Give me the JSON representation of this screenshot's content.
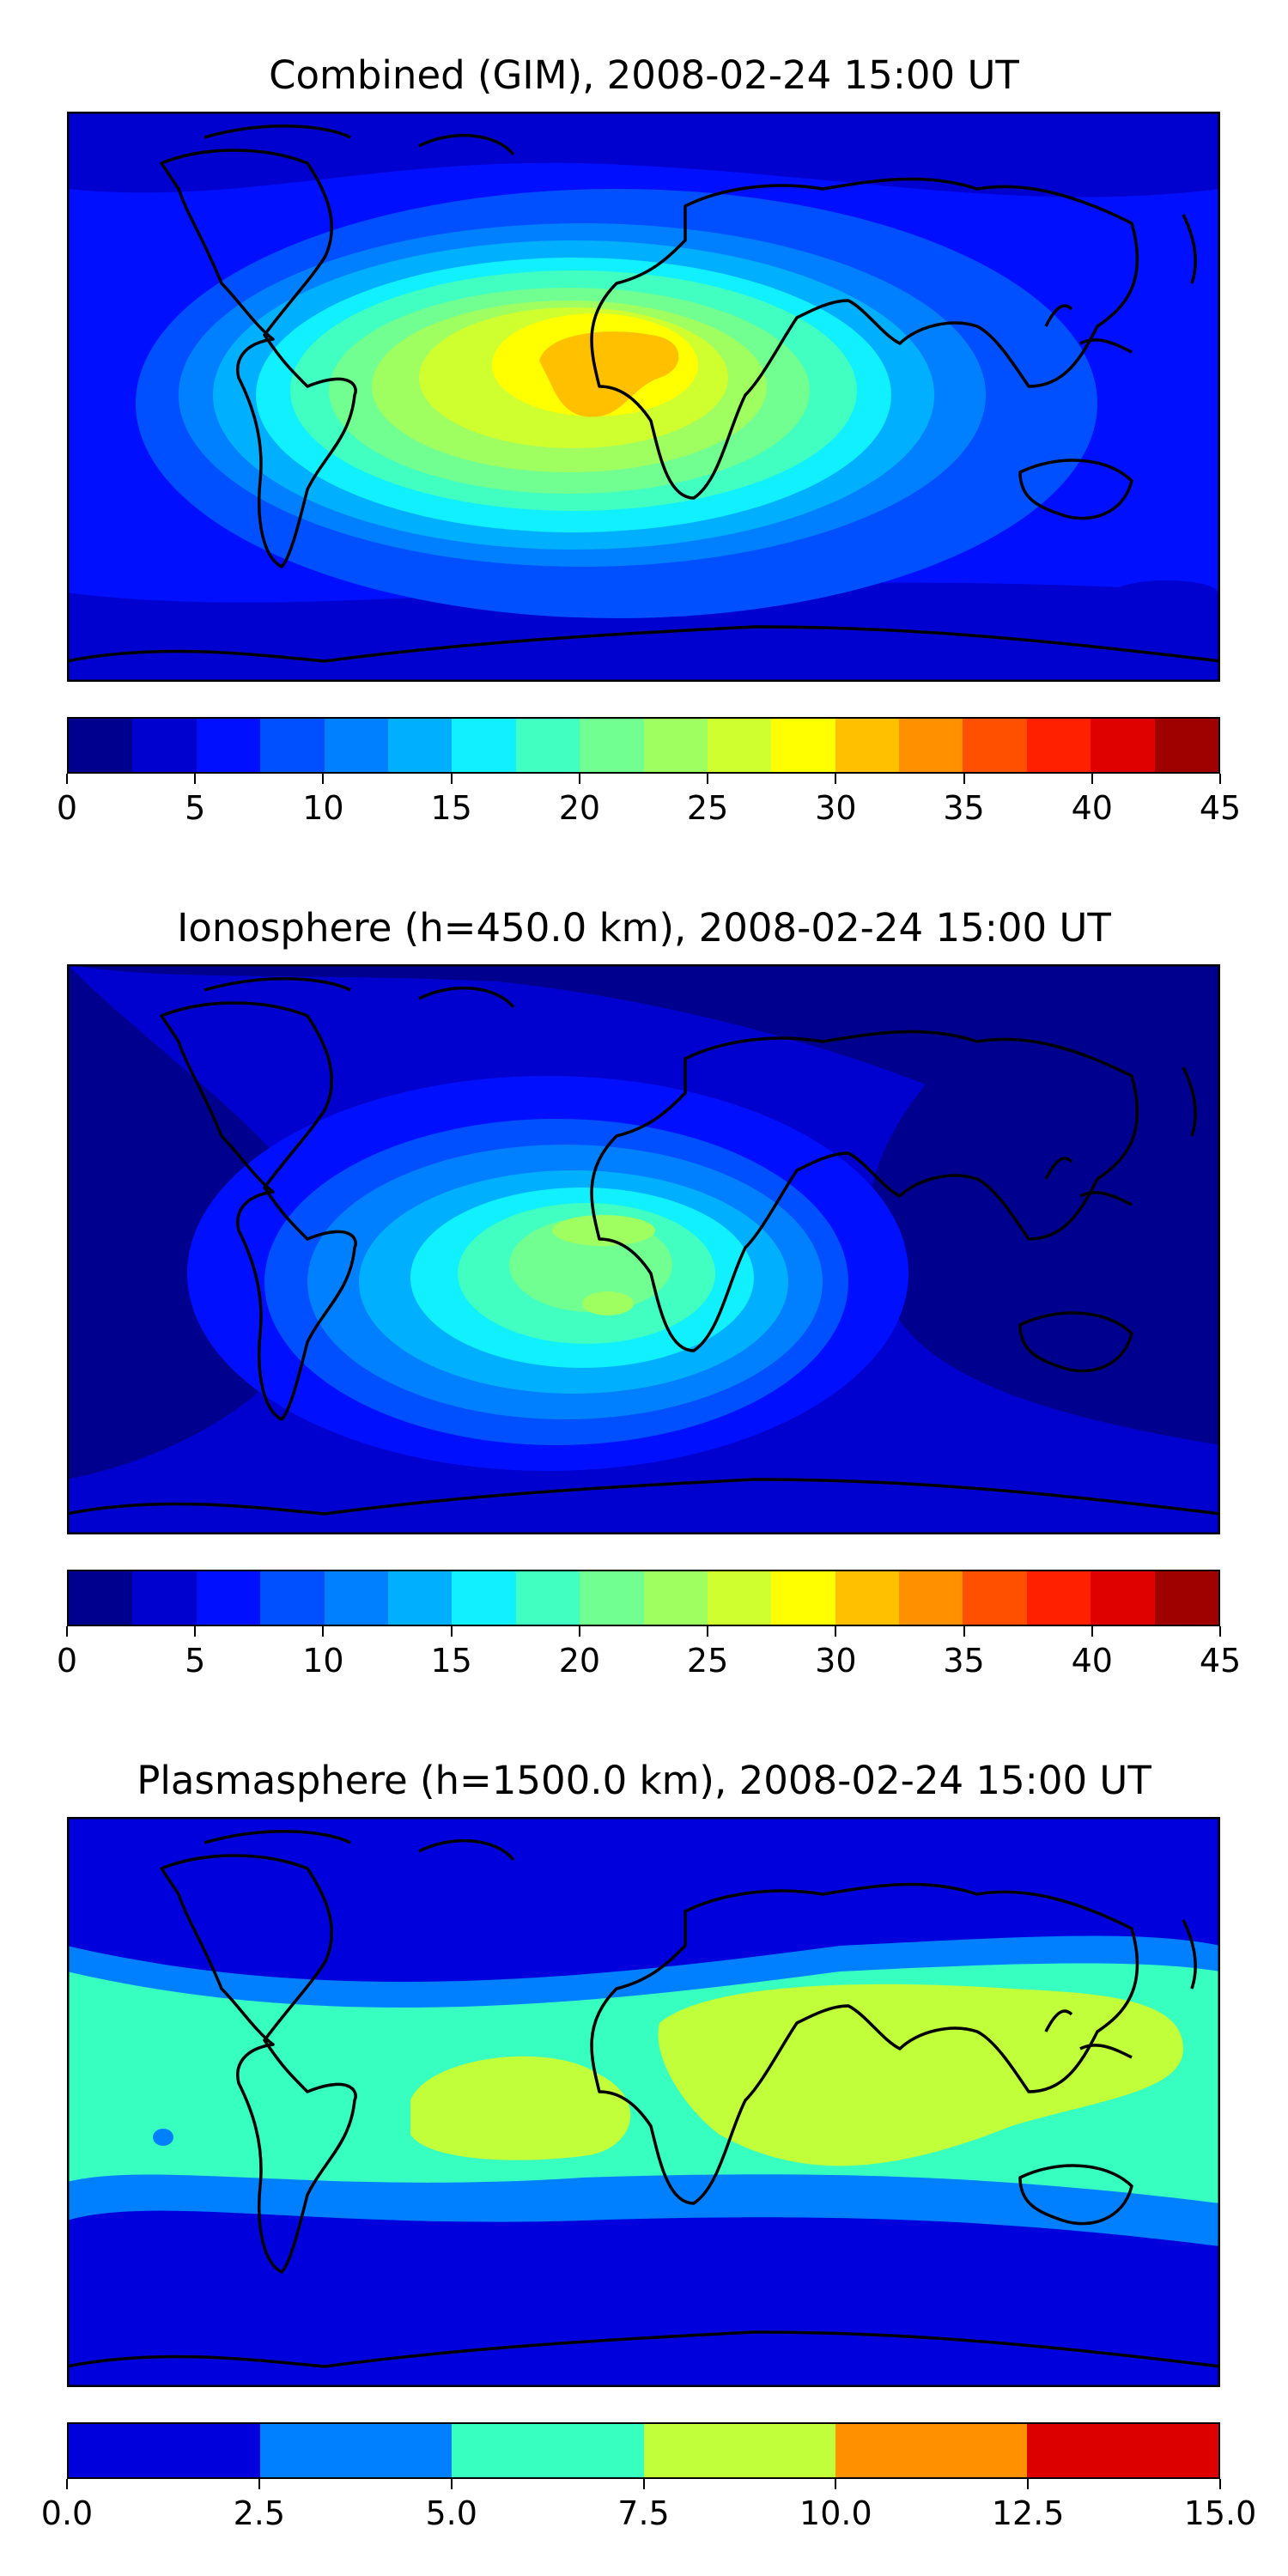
{
  "chart_data": [
    {
      "type": "heatmap",
      "title": "Combined (GIM), 2008-02-24 15:00 UT",
      "xlabel": "",
      "ylabel": "",
      "colorbar": {
        "min": 0,
        "max": 45,
        "step": 2.5,
        "ticks": [
          0,
          5,
          10,
          15,
          20,
          25,
          30,
          35,
          40,
          45
        ],
        "tick_labels": [
          "0",
          "5",
          "10",
          "15",
          "20",
          "25",
          "30",
          "35",
          "40",
          "45"
        ],
        "colors": [
          "#00008f",
          "#0000cf",
          "#0010ff",
          "#0050ff",
          "#0080ff",
          "#00b0ff",
          "#10f0ff",
          "#40ffc0",
          "#70ff90",
          "#a0ff60",
          "#d0ff30",
          "#ffff00",
          "#ffc000",
          "#ff9000",
          "#ff5000",
          "#ff2000",
          "#df0000",
          "#9f0000"
        ]
      },
      "peak_value": 32.5,
      "background_value": 7.5,
      "peak_region": "tropical South America and Africa"
    },
    {
      "type": "heatmap",
      "title": "Ionosphere  (h=450.0 km), 2008-02-24 15:00 UT",
      "xlabel": "",
      "ylabel": "",
      "colorbar": {
        "min": 0,
        "max": 45,
        "step": 2.5,
        "ticks": [
          0,
          5,
          10,
          15,
          20,
          25,
          30,
          35,
          40,
          45
        ],
        "tick_labels": [
          "0",
          "5",
          "10",
          "15",
          "20",
          "25",
          "30",
          "35",
          "40",
          "45"
        ],
        "colors": [
          "#00008f",
          "#0000cf",
          "#0010ff",
          "#0050ff",
          "#0080ff",
          "#00b0ff",
          "#10f0ff",
          "#40ffc0",
          "#70ff90",
          "#a0ff60",
          "#d0ff30",
          "#ffff00",
          "#ffc000",
          "#ff9000",
          "#ff5000",
          "#ff2000",
          "#df0000",
          "#9f0000"
        ]
      },
      "peak_value": 25,
      "background_value": 2.5,
      "peak_region": "South Atlantic, South America and Africa"
    },
    {
      "type": "heatmap",
      "title": "Plasmasphere (h=1500.0 km), 2008-02-24 15:00 UT",
      "xlabel": "",
      "ylabel": "",
      "colorbar": {
        "min": 0,
        "max": 15,
        "step": 2.5,
        "ticks": [
          0,
          2.5,
          5,
          7.5,
          10,
          12.5,
          15
        ],
        "tick_labels": [
          "0.0",
          "2.5",
          "5.0",
          "7.5",
          "10.0",
          "12.5",
          "15.0"
        ],
        "colors": [
          "#0000dd",
          "#0080ff",
          "#36ffc0",
          "#c0ff3a",
          "#ff9000",
          "#dd0000"
        ]
      },
      "peak_value": 10,
      "background_value": 2.5,
      "peak_region": "equatorial band, Africa to Indian Ocean"
    }
  ]
}
